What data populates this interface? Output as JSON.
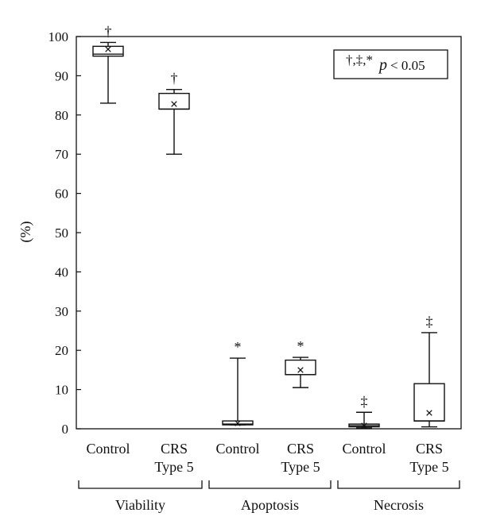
{
  "chart_data": {
    "type": "boxplot",
    "ylabel": "(%)",
    "ylim": [
      0,
      100
    ],
    "yticks": [
      0,
      10,
      20,
      30,
      40,
      50,
      60,
      70,
      80,
      90,
      100
    ],
    "grid": false,
    "legend": {
      "placement": "top-right",
      "symbols": "†,‡,*",
      "p_symbol": "p",
      "text": " < 0.05"
    },
    "groups": [
      {
        "label": "Viability",
        "categories": [
          0,
          1
        ]
      },
      {
        "label": "Apoptosis",
        "categories": [
          2,
          3
        ]
      },
      {
        "label": "Necrosis",
        "categories": [
          4,
          5
        ]
      }
    ],
    "categories": [
      {
        "lines": [
          "Control"
        ],
        "min": 83,
        "q1": 95,
        "median": 95.5,
        "q3": 97.5,
        "max": 98.5,
        "mean": 96.8,
        "marker": "†"
      },
      {
        "lines": [
          "CRS",
          "Type 5"
        ],
        "min": 70,
        "q1": 81.5,
        "median": 81.5,
        "q3": 85.5,
        "max": 86.5,
        "mean": 82.8,
        "marker": "†"
      },
      {
        "lines": [
          "Control"
        ],
        "min": 1,
        "q1": 1,
        "median": 1.2,
        "q3": 2,
        "max": 18,
        "mean": 1.4,
        "marker": "*"
      },
      {
        "lines": [
          "CRS",
          "Type 5"
        ],
        "min": 10.5,
        "q1": 13.8,
        "median": 13.8,
        "q3": 17.5,
        "max": 18.2,
        "mean": 15,
        "marker": "*"
      },
      {
        "lines": [
          "Control"
        ],
        "min": 0.2,
        "q1": 0.5,
        "median": 0.8,
        "q3": 1.2,
        "max": 4.2,
        "mean": 0.8,
        "marker": "‡"
      },
      {
        "lines": [
          "CRS",
          "Type 5"
        ],
        "min": 0.5,
        "q1": 2,
        "median": 2,
        "q3": 11.5,
        "max": 24.5,
        "mean": 4,
        "marker": "‡"
      }
    ]
  }
}
